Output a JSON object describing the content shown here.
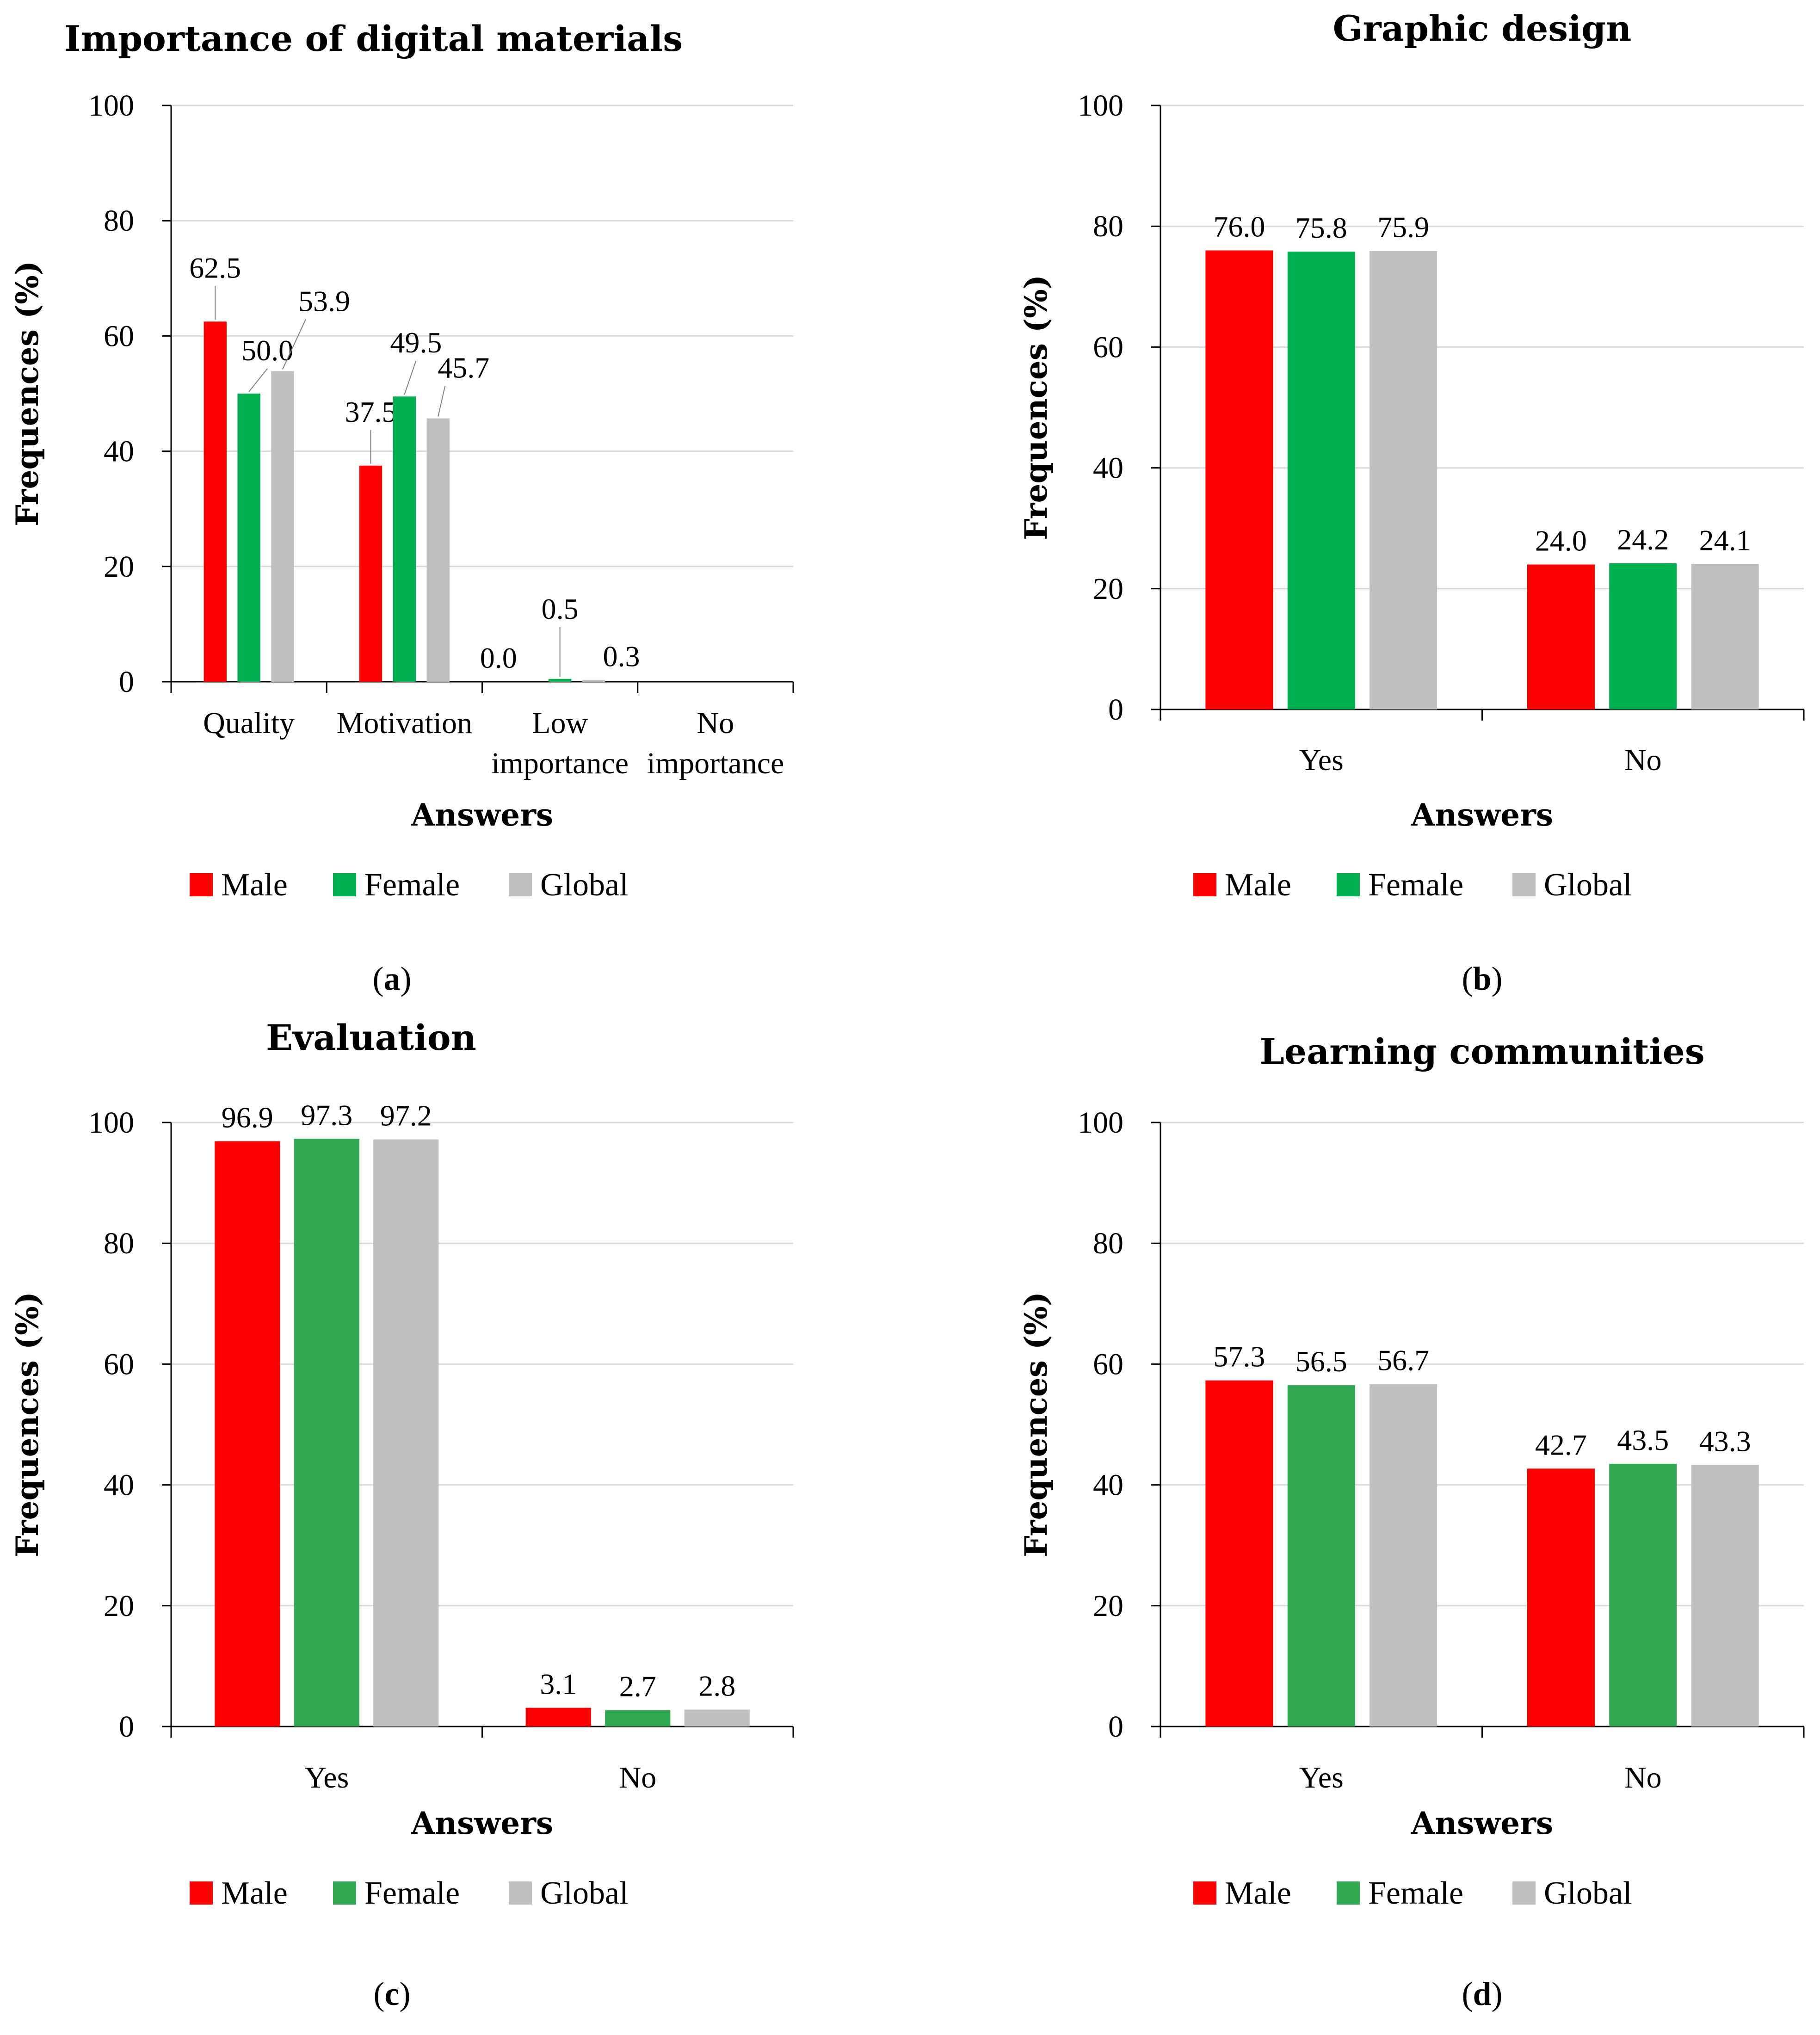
{
  "legend": [
    "Male",
    "Female",
    "Global"
  ],
  "chart_data": [
    {
      "id": "a",
      "type": "bar",
      "title": "Importance of digital materials",
      "xlabel": "Answers",
      "ylabel": "Frequences (%)",
      "ylim": [
        0,
        100
      ],
      "yticks": [
        "0",
        "20",
        "40",
        "60",
        "80",
        "100"
      ],
      "categories": [
        [
          "Quality"
        ],
        [
          "Motivation"
        ],
        [
          "Low",
          "importance"
        ],
        [
          "No",
          "importance"
        ]
      ],
      "series": [
        {
          "name": "Male",
          "color": "#FF0000",
          "values": [
            62.5,
            37.5,
            0.0,
            0.0
          ],
          "labels": [
            "62.5",
            "37.5",
            "0.0",
            ""
          ]
        },
        {
          "name": "Female",
          "color": "#00B050",
          "values": [
            50.0,
            49.5,
            0.5,
            0.0
          ],
          "labels": [
            "50.0",
            "49.5",
            "0.5",
            ""
          ]
        },
        {
          "name": "Global",
          "color": "#BFBFBF",
          "values": [
            53.9,
            45.7,
            0.3,
            0.0
          ],
          "labels": [
            "53.9",
            "45.7",
            "0.3",
            ""
          ]
        }
      ],
      "panel_label": "a"
    },
    {
      "id": "b",
      "type": "bar",
      "title": "Graphic design",
      "xlabel": "Answers",
      "ylabel": "Frequences (%)",
      "ylim": [
        0,
        100
      ],
      "yticks": [
        "0",
        "20",
        "40",
        "60",
        "80",
        "100"
      ],
      "categories": [
        [
          "Yes"
        ],
        [
          "No"
        ]
      ],
      "series": [
        {
          "name": "Male",
          "color": "#FF0000",
          "values": [
            76.0,
            24.0
          ],
          "labels": [
            "76.0",
            "24.0"
          ]
        },
        {
          "name": "Female",
          "color": "#00B050",
          "values": [
            75.8,
            24.2
          ],
          "labels": [
            "75.8",
            "24.2"
          ]
        },
        {
          "name": "Global",
          "color": "#BFBFBF",
          "values": [
            75.9,
            24.1
          ],
          "labels": [
            "75.9",
            "24.1"
          ]
        }
      ],
      "panel_label": "b"
    },
    {
      "id": "c",
      "type": "bar",
      "title": "Evaluation",
      "xlabel": "Answers",
      "ylabel": "Frequences (%)",
      "ylim": [
        0,
        100
      ],
      "yticks": [
        "0",
        "20",
        "40",
        "60",
        "80",
        "100"
      ],
      "categories": [
        [
          "Yes"
        ],
        [
          "No"
        ]
      ],
      "series": [
        {
          "name": "Male",
          "color": "#FF0000",
          "values": [
            96.9,
            3.1
          ],
          "labels": [
            "96.9",
            "3.1"
          ]
        },
        {
          "name": "Female",
          "color": "#33A853",
          "values": [
            97.3,
            2.7
          ],
          "labels": [
            "97.3",
            "2.7"
          ]
        },
        {
          "name": "Global",
          "color": "#BFBFBF",
          "values": [
            97.2,
            2.8
          ],
          "labels": [
            "97.2",
            "2.8"
          ]
        }
      ],
      "panel_label": "c"
    },
    {
      "id": "d",
      "type": "bar",
      "title": "Learning communities",
      "xlabel": "Answers",
      "ylabel": "Frequences (%)",
      "ylim": [
        0,
        100
      ],
      "yticks": [
        "0",
        "20",
        "40",
        "60",
        "80",
        "100"
      ],
      "categories": [
        [
          "Yes"
        ],
        [
          "No"
        ]
      ],
      "series": [
        {
          "name": "Male",
          "color": "#FF0000",
          "values": [
            57.3,
            42.7
          ],
          "labels": [
            "57.3",
            "42.7"
          ]
        },
        {
          "name": "Female",
          "color": "#33A853",
          "values": [
            56.5,
            43.5
          ],
          "labels": [
            "56.5",
            "43.5"
          ]
        },
        {
          "name": "Global",
          "color": "#BFBFBF",
          "values": [
            56.7,
            43.3
          ],
          "labels": [
            "56.7",
            "43.3"
          ]
        }
      ],
      "panel_label": "d"
    }
  ]
}
